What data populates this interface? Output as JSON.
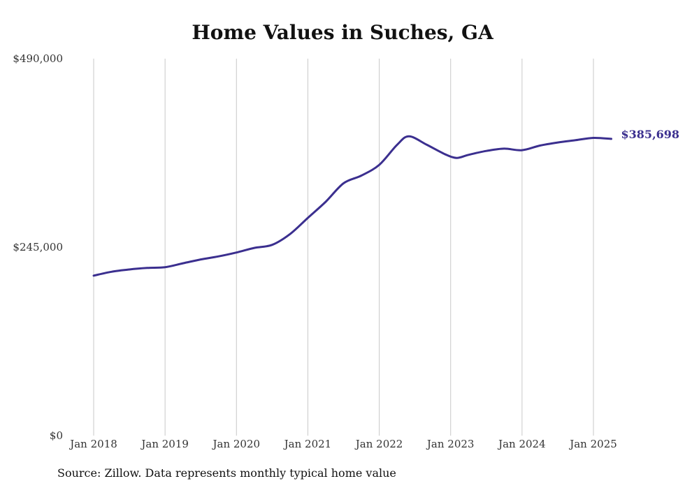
{
  "chart_data": {
    "type": "line",
    "title": "Home Values in Suches, GA",
    "xlabel": "",
    "ylabel": "",
    "ylim": [
      0,
      490000
    ],
    "xlim": [
      "2018-01",
      "2025-04"
    ],
    "y_ticks": [
      {
        "value": 0,
        "label": "$0"
      },
      {
        "value": 245000,
        "label": "$245,000"
      },
      {
        "value": 490000,
        "label": "$490,000"
      }
    ],
    "x_ticks": [
      {
        "value": "2018-01",
        "label": "Jan 2018"
      },
      {
        "value": "2019-01",
        "label": "Jan 2019"
      },
      {
        "value": "2020-01",
        "label": "Jan 2020"
      },
      {
        "value": "2021-01",
        "label": "Jan 2021"
      },
      {
        "value": "2022-01",
        "label": "Jan 2022"
      },
      {
        "value": "2023-01",
        "label": "Jan 2023"
      },
      {
        "value": "2024-01",
        "label": "Jan 2024"
      },
      {
        "value": "2025-01",
        "label": "Jan 2025"
      }
    ],
    "grid": {
      "vertical": true,
      "horizontal": false
    },
    "line_color": "#3b2f8f",
    "series": [
      {
        "points": [
          [
            "2018-01",
            208000
          ],
          [
            "2018-04",
            213000
          ],
          [
            "2018-07",
            216000
          ],
          [
            "2018-10",
            218000
          ],
          [
            "2019-01",
            219000
          ],
          [
            "2019-04",
            224000
          ],
          [
            "2019-07",
            229000
          ],
          [
            "2019-10",
            233000
          ],
          [
            "2020-01",
            238000
          ],
          [
            "2020-04",
            244000
          ],
          [
            "2020-07",
            248000
          ],
          [
            "2020-10",
            262000
          ],
          [
            "2021-01",
            283000
          ],
          [
            "2021-04",
            304000
          ],
          [
            "2021-07",
            328000
          ],
          [
            "2021-10",
            338000
          ],
          [
            "2022-01",
            352000
          ],
          [
            "2022-04",
            378000
          ],
          [
            "2022-06",
            389000
          ],
          [
            "2022-09",
            378000
          ],
          [
            "2022-12",
            366000
          ],
          [
            "2023-02",
            361000
          ],
          [
            "2023-04",
            365000
          ],
          [
            "2023-07",
            370000
          ],
          [
            "2023-10",
            373000
          ],
          [
            "2024-01",
            371000
          ],
          [
            "2024-04",
            377000
          ],
          [
            "2024-07",
            381000
          ],
          [
            "2024-10",
            384000
          ],
          [
            "2025-01",
            387000
          ],
          [
            "2025-04",
            385698
          ]
        ],
        "end_label": "$385,698"
      }
    ],
    "source_note": "Source: Zillow. Data represents monthly typical home value"
  }
}
